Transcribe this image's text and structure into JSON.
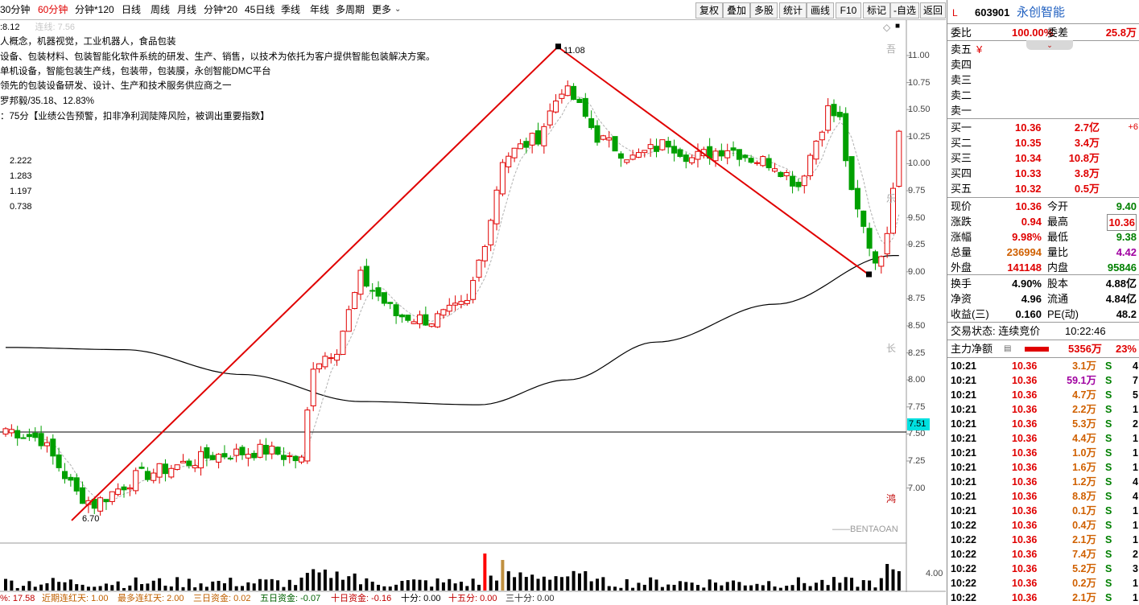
{
  "toolbar": {
    "periods": [
      "30分钟",
      "60分钟",
      "分钟*120",
      "日线",
      "周线",
      "月线",
      "分钟*20",
      "45日线",
      "季线",
      "年线",
      "多周期",
      "更多"
    ],
    "active_period": "60分钟",
    "buttons": [
      "复权",
      "叠加",
      "多股",
      "统计",
      "画线",
      "F10",
      "标记",
      "-自选",
      "返回"
    ]
  },
  "chart": {
    "ma_label_prefix": ":8.12",
    "ma_label_faded": "连线: 7.56",
    "info_lines": [
      "人概念，机器视觉，工业机器人，食品包装",
      "设备、包装材料、包装智能化软件系统的研发、生产、销售，以技术为依托为客户提供智能包装解决方案。",
      "单机设备，智能包装生产线，包装带，包装膜，永创智能DMC平台",
      "领先的包装设备研发、设计、生产和技术服务供应商之一",
      "罗邦毅/35.18、12.83%",
      "：75分【业绩公告预警，扣非净利润陡降风险，被调出重要指数】"
    ],
    "side_values": [
      "2.222",
      "1.283",
      "1.197",
      "0.738"
    ],
    "high_label": "11.08",
    "low_label": "6.70",
    "current_price_tag": "7.51",
    "watermark": "——BENTAOAN",
    "right_vertical_glyphs": [
      "吾",
      "乐",
      "长",
      "鸿"
    ],
    "price_axis": [
      "11.00",
      "10.75",
      "10.50",
      "10.25",
      "10.00",
      "9.75",
      "9.50",
      "9.25",
      "9.00",
      "8.75",
      "8.50",
      "8.25",
      "8.00",
      "7.75",
      "7.50",
      "7.25",
      "7.00"
    ],
    "volume_axis": "4.00",
    "colors": {
      "up": "#e00000",
      "down": "#00a000",
      "trend": "#e00000",
      "ma": "#000000"
    }
  },
  "bottom_bar": [
    {
      "label": "%: 17.58",
      "color": "#c00000"
    },
    {
      "label": "近期连红天: 1.00",
      "color": "#c06000"
    },
    {
      "label": "最多连红天: 2.00",
      "color": "#c06000"
    },
    {
      "label": "三日资金: 0.02",
      "color": "#c06000"
    },
    {
      "label": "五日资金: -0.07",
      "color": "#006000"
    },
    {
      "label": "十日资金: -0.16",
      "color": "#c00000"
    },
    {
      "label": "十分: 0.00",
      "color": "#000000"
    },
    {
      "label": "十五分: 0.00",
      "color": "#c00000"
    },
    {
      "label": "三十分: 0.00",
      "color": "#333333"
    }
  ],
  "panel": {
    "flag": "L",
    "code": "603901",
    "name": "永创智能",
    "weibi_label": "委比",
    "weibi": "100.00%",
    "weicha_label": "委差",
    "weicha": "25.8万",
    "sell": [
      {
        "label": "卖五",
        "price": "¥",
        "vol": ""
      },
      {
        "label": "卖四",
        "price": "",
        "vol": ""
      },
      {
        "label": "卖三",
        "price": "",
        "vol": ""
      },
      {
        "label": "卖二",
        "price": "",
        "vol": ""
      },
      {
        "label": "卖一",
        "price": "",
        "vol": ""
      }
    ],
    "buy": [
      {
        "label": "买一",
        "price": "10.36",
        "vol": "2.7亿",
        "chg": "+6"
      },
      {
        "label": "买二",
        "price": "10.35",
        "vol": "3.4万",
        "chg": ""
      },
      {
        "label": "买三",
        "price": "10.34",
        "vol": "10.8万",
        "chg": ""
      },
      {
        "label": "买四",
        "price": "10.33",
        "vol": "3.8万",
        "chg": ""
      },
      {
        "label": "买五",
        "price": "10.32",
        "vol": "0.5万",
        "chg": ""
      }
    ],
    "quote": [
      {
        "l1": "现价",
        "v1": "10.36",
        "c1": "red",
        "l2": "今开",
        "v2": "9.40",
        "c2": "green"
      },
      {
        "l1": "涨跌",
        "v1": "0.94",
        "c1": "red",
        "l2": "最高",
        "v2": "10.36",
        "c2": "red"
      },
      {
        "l1": "涨幅",
        "v1": "9.98%",
        "c1": "red",
        "l2": "最低",
        "v2": "9.38",
        "c2": "green"
      },
      {
        "l1": "总量",
        "v1": "236994",
        "c1": "orange",
        "l2": "量比",
        "v2": "4.42",
        "c2": "purple"
      },
      {
        "l1": "外盘",
        "v1": "141148",
        "c1": "red",
        "l2": "内盘",
        "v2": "95846",
        "c2": "green"
      }
    ],
    "stats": [
      {
        "l1": "换手",
        "v1": "4.90%",
        "l2": "股本",
        "v2": "4.88亿"
      },
      {
        "l1": "净资",
        "v1": "4.96",
        "l2": "流通",
        "v2": "4.84亿"
      },
      {
        "l1": "收益(三)",
        "v1": "0.160",
        "l2": "PE(动)",
        "v2": "48.2"
      }
    ],
    "trade_state_label": "交易状态: 连续竞价",
    "trade_time": "10:22:46",
    "main_flow_label": "主力净额",
    "main_flow_value": "5356万",
    "main_flow_pct": "23%",
    "ticks": [
      {
        "t": "10:21",
        "p": "10.36",
        "v": "3.1万",
        "vc": "orange",
        "s": "S",
        "n": "4"
      },
      {
        "t": "10:21",
        "p": "10.36",
        "v": "59.1万",
        "vc": "purple",
        "s": "S",
        "n": "7"
      },
      {
        "t": "10:21",
        "p": "10.36",
        "v": "4.7万",
        "vc": "orange",
        "s": "S",
        "n": "5"
      },
      {
        "t": "10:21",
        "p": "10.36",
        "v": "2.2万",
        "vc": "orange",
        "s": "S",
        "n": "1"
      },
      {
        "t": "10:21",
        "p": "10.36",
        "v": "5.3万",
        "vc": "orange",
        "s": "S",
        "n": "2"
      },
      {
        "t": "10:21",
        "p": "10.36",
        "v": "4.4万",
        "vc": "orange",
        "s": "S",
        "n": "1"
      },
      {
        "t": "10:21",
        "p": "10.36",
        "v": "1.0万",
        "vc": "orange",
        "s": "S",
        "n": "1"
      },
      {
        "t": "10:21",
        "p": "10.36",
        "v": "1.6万",
        "vc": "orange",
        "s": "S",
        "n": "1"
      },
      {
        "t": "10:21",
        "p": "10.36",
        "v": "1.2万",
        "vc": "orange",
        "s": "S",
        "n": "4"
      },
      {
        "t": "10:21",
        "p": "10.36",
        "v": "8.8万",
        "vc": "orange",
        "s": "S",
        "n": "4"
      },
      {
        "t": "10:21",
        "p": "10.36",
        "v": "0.1万",
        "vc": "orange",
        "s": "S",
        "n": "1"
      },
      {
        "t": "10:22",
        "p": "10.36",
        "v": "0.4万",
        "vc": "orange",
        "s": "S",
        "n": "1"
      },
      {
        "t": "10:22",
        "p": "10.36",
        "v": "2.1万",
        "vc": "orange",
        "s": "S",
        "n": "1"
      },
      {
        "t": "10:22",
        "p": "10.36",
        "v": "7.4万",
        "vc": "orange",
        "s": "S",
        "n": "2"
      },
      {
        "t": "10:22",
        "p": "10.36",
        "v": "5.2万",
        "vc": "orange",
        "s": "S",
        "n": "3"
      },
      {
        "t": "10:22",
        "p": "10.36",
        "v": "0.2万",
        "vc": "orange",
        "s": "S",
        "n": "1"
      },
      {
        "t": "10:22",
        "p": "10.36",
        "v": "2.1万",
        "vc": "orange",
        "s": "S",
        "n": "1"
      }
    ]
  }
}
